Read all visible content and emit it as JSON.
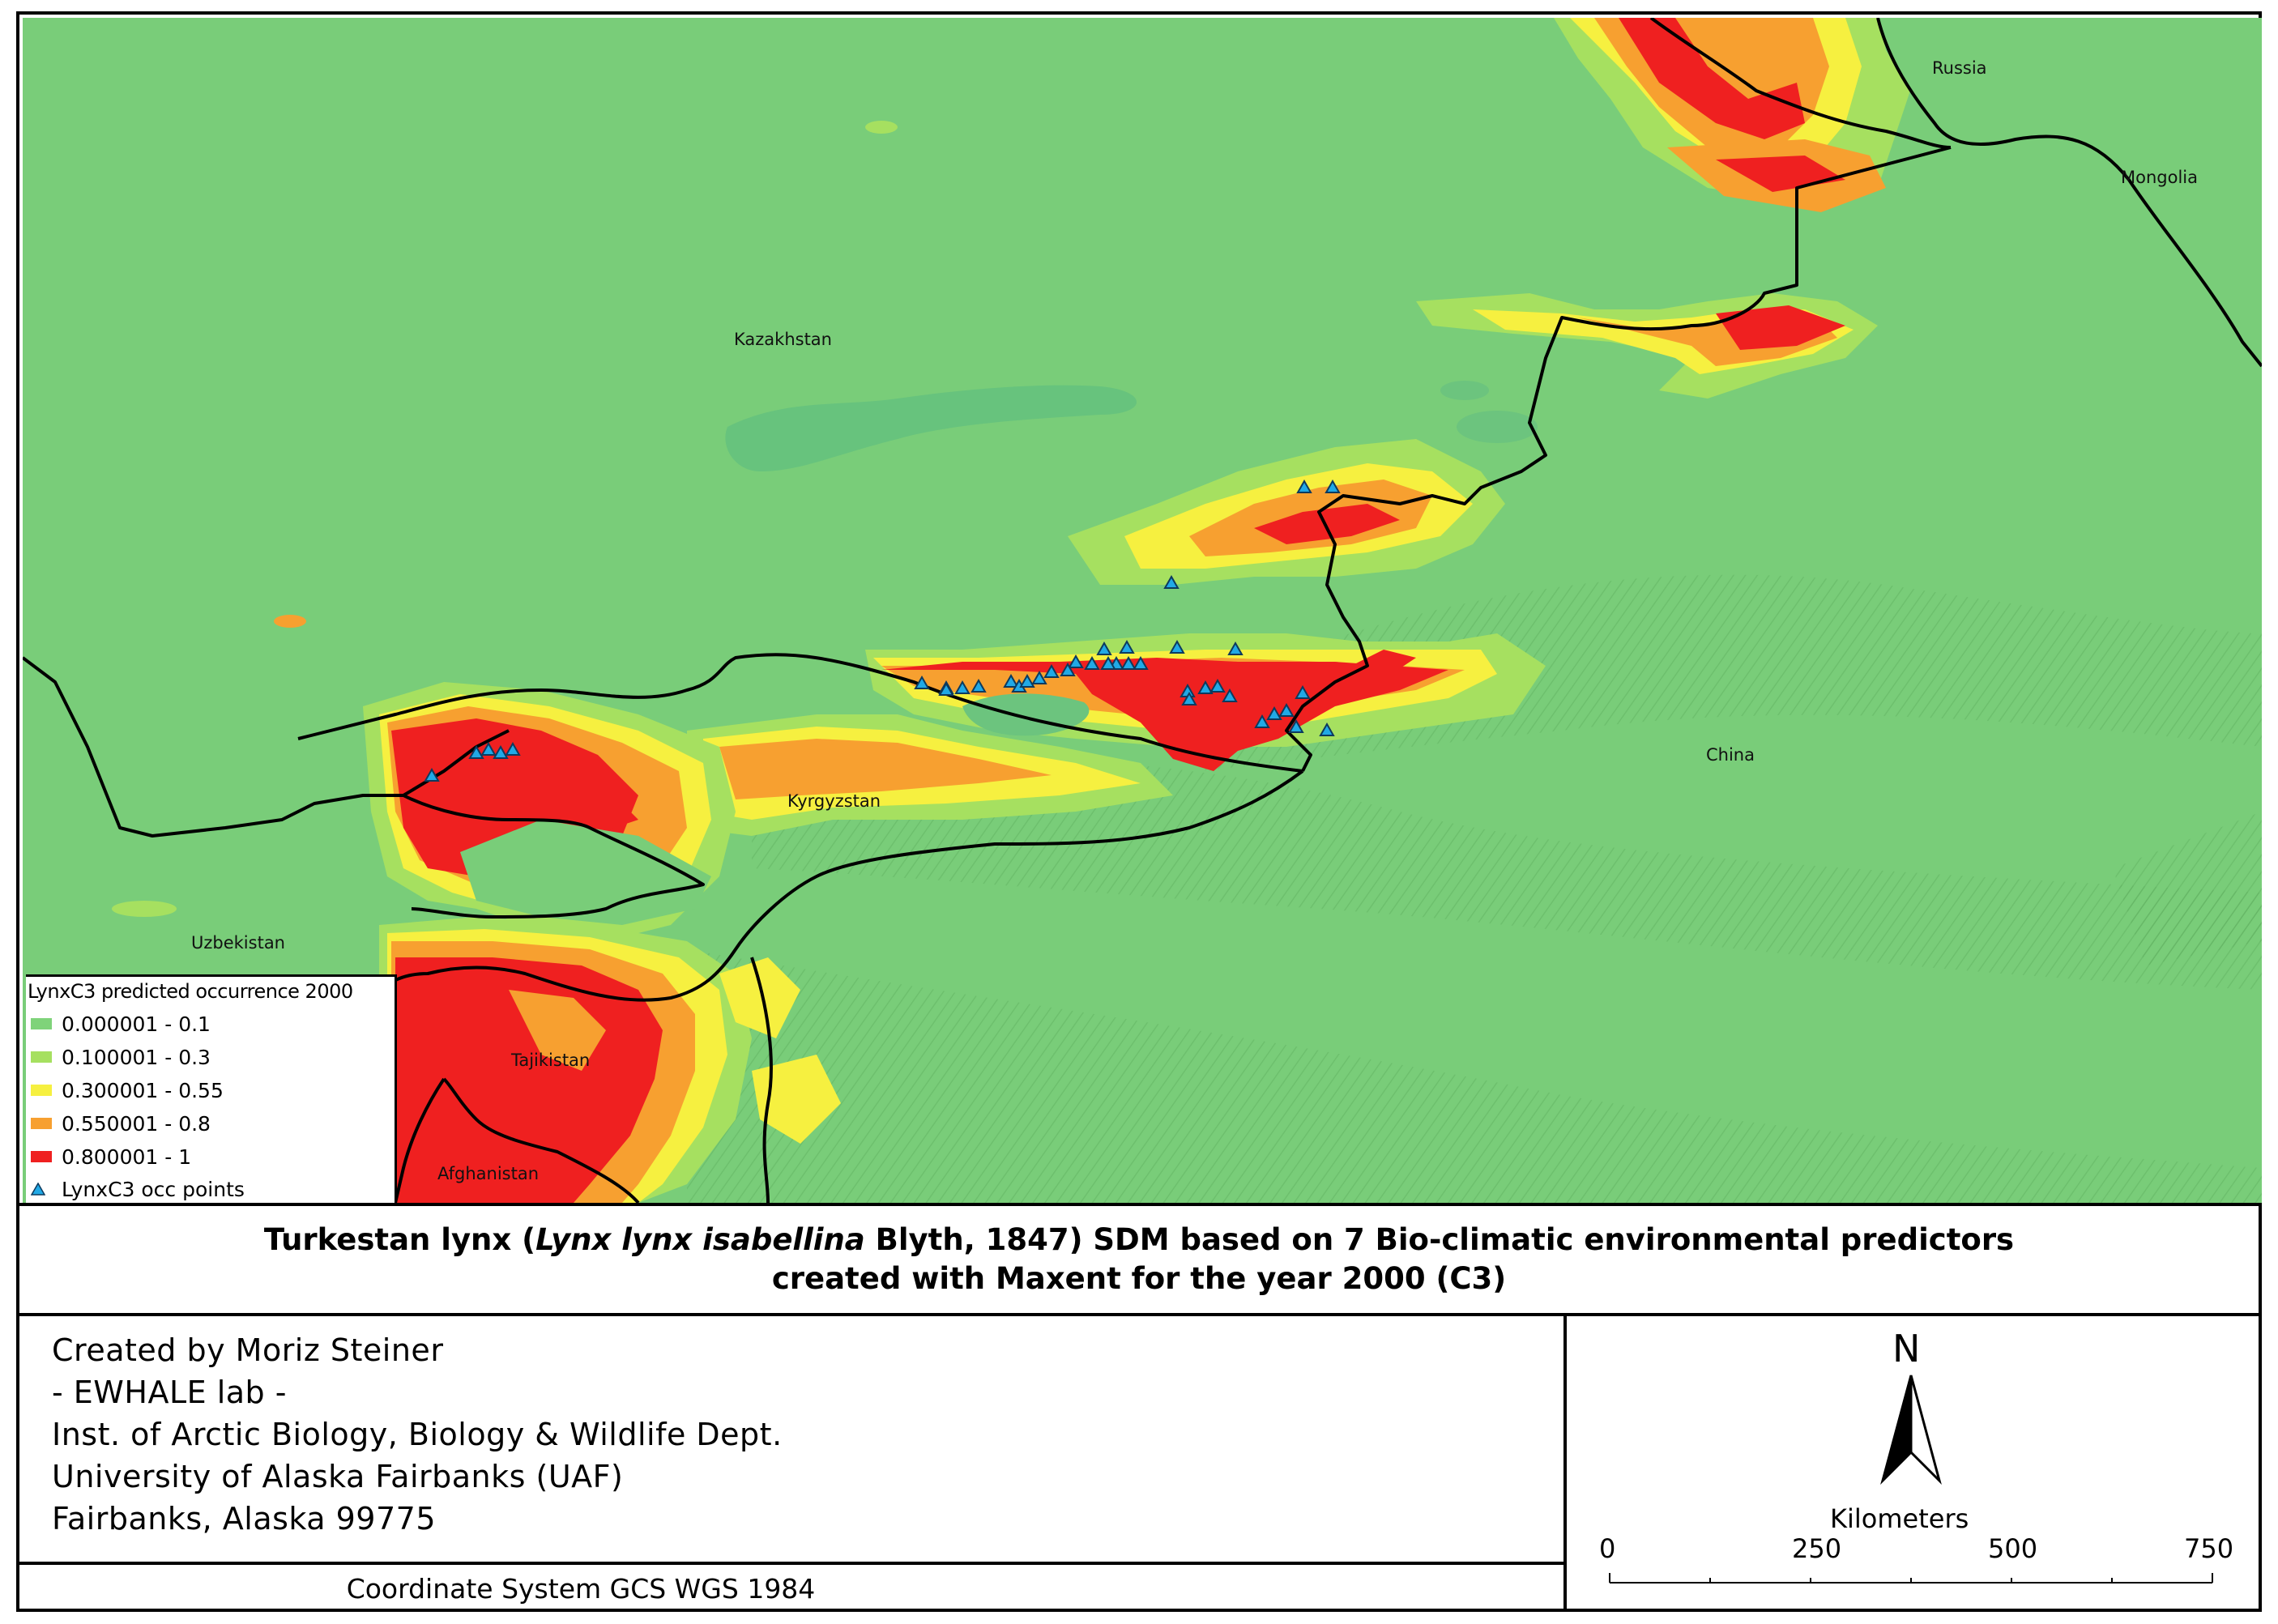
{
  "map": {
    "title_line1": "Turkestan lynx (",
    "title_italic": "Lynx lynx isabellina",
    "title_line1_end": " Blyth, 1847) SDM based on 7 Bio-climatic environmental predictors",
    "title_line2": "created with Maxent for the year 2000 (C3)",
    "countries": {
      "russia": "Russia",
      "mongolia": "Mongolia",
      "kazakhstan": "Kazakhstan",
      "china": "China",
      "kyrgyzstan": "Kyrgyzstan",
      "uzbekistan": "Uzbekistan",
      "tajikistan": "Tajikistan",
      "afghanistan": "Afghanistan"
    },
    "colors": {
      "background_green": "#79cd79",
      "class1": "#7fd37a",
      "class2": "#a6e060",
      "class3": "#f6f040",
      "class4": "#f7a030",
      "class5": "#ef2020",
      "point_fill": "#21a9e6",
      "border": "#000000"
    }
  },
  "legend": {
    "title": "LynxC3 predicted occurrence 2000",
    "classes": [
      {
        "label": "0.000001 - 0.1",
        "color": "#7fd37a"
      },
      {
        "label": "0.100001 - 0.3",
        "color": "#a6e060"
      },
      {
        "label": "0.300001 - 0.55",
        "color": "#f6f040"
      },
      {
        "label": "0.550001 - 0.8",
        "color": "#f7a030"
      },
      {
        "label": "0.800001 - 1",
        "color": "#ef2020"
      }
    ],
    "points_label": "LynxC3 occ points"
  },
  "credits": {
    "line1": "Created by Moriz Steiner",
    "line2": "- EWHALE lab -",
    "line3": "Inst. of Arctic Biology,  Biology & Wildlife Dept.",
    "line4": "University of Alaska Fairbanks (UAF)",
    "line5": "Fairbanks, Alaska 99775"
  },
  "coordinate_system": "Coordinate System GCS WGS 1984",
  "north_arrow": {
    "label": "N"
  },
  "scale": {
    "title": "Kilometers",
    "ticks": [
      "0",
      "250",
      "500",
      "750"
    ]
  }
}
